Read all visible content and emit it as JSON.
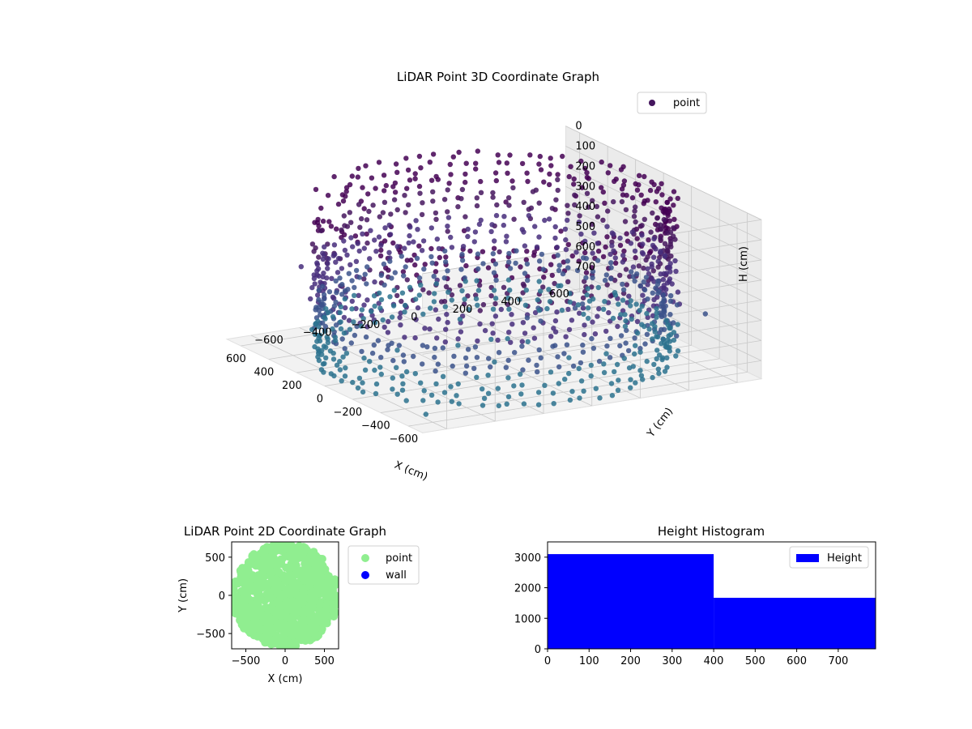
{
  "chart_data": [
    {
      "type": "scatter",
      "title": "LiDAR Point 3D Coordinate Graph",
      "xlabel": "X (cm)",
      "ylabel": "Y (cm)",
      "zlabel": "H (cm)",
      "xticks": [
        -600,
        -400,
        -200,
        0,
        200,
        400,
        600
      ],
      "yticks": [
        -600,
        -400,
        -200,
        0,
        200,
        400,
        600
      ],
      "zticks": [
        0,
        100,
        200,
        300,
        400,
        500,
        600,
        700
      ],
      "xlim": [
        -700,
        700
      ],
      "ylim": [
        -700,
        700
      ],
      "zlim": [
        0,
        790
      ],
      "z_axis_inverted": true,
      "legend": [
        "point"
      ],
      "legend_position": "top-right",
      "colormap": "viridis",
      "point_color": "#45165e",
      "grid": true,
      "series": [
        {
          "name": "point",
          "description_points": "cylindrical wall of points, radius approx 650 cm, heights 0 to 790 cm, plus scattered interior and outlier points",
          "wall_radius": 650,
          "height_range": [
            0,
            790
          ]
        }
      ]
    },
    {
      "type": "scatter",
      "title": "LiDAR Point 2D Coordinate Graph",
      "xlabel": "X (cm)",
      "ylabel": "Y (cm)",
      "xticks": [
        -500,
        0,
        500
      ],
      "yticks": [
        -500,
        0,
        500
      ],
      "xlim": [
        -680,
        680
      ],
      "ylim": [
        -700,
        700
      ],
      "legend": [
        "point",
        "wall"
      ],
      "legend_position": "outside-right",
      "colors": {
        "point": "#90ee90",
        "wall": "#0000ff"
      },
      "series": [
        {
          "name": "point",
          "shape": "filled disc, radius approx 650 cm"
        },
        {
          "name": "wall",
          "values": []
        }
      ]
    },
    {
      "type": "bar",
      "title": "Height Histogram",
      "xticks": [
        0,
        100,
        200,
        300,
        400,
        500,
        600,
        700
      ],
      "yticks": [
        0,
        1000,
        2000,
        3000
      ],
      "xlim": [
        0,
        790
      ],
      "ylim": [
        0,
        3500
      ],
      "legend": [
        "Height"
      ],
      "legend_position": "top-right",
      "color": "#0000ff",
      "bins": [
        {
          "start": 0,
          "end": 400,
          "count": 3100
        },
        {
          "start": 400,
          "end": 790,
          "count": 1670
        }
      ]
    }
  ]
}
